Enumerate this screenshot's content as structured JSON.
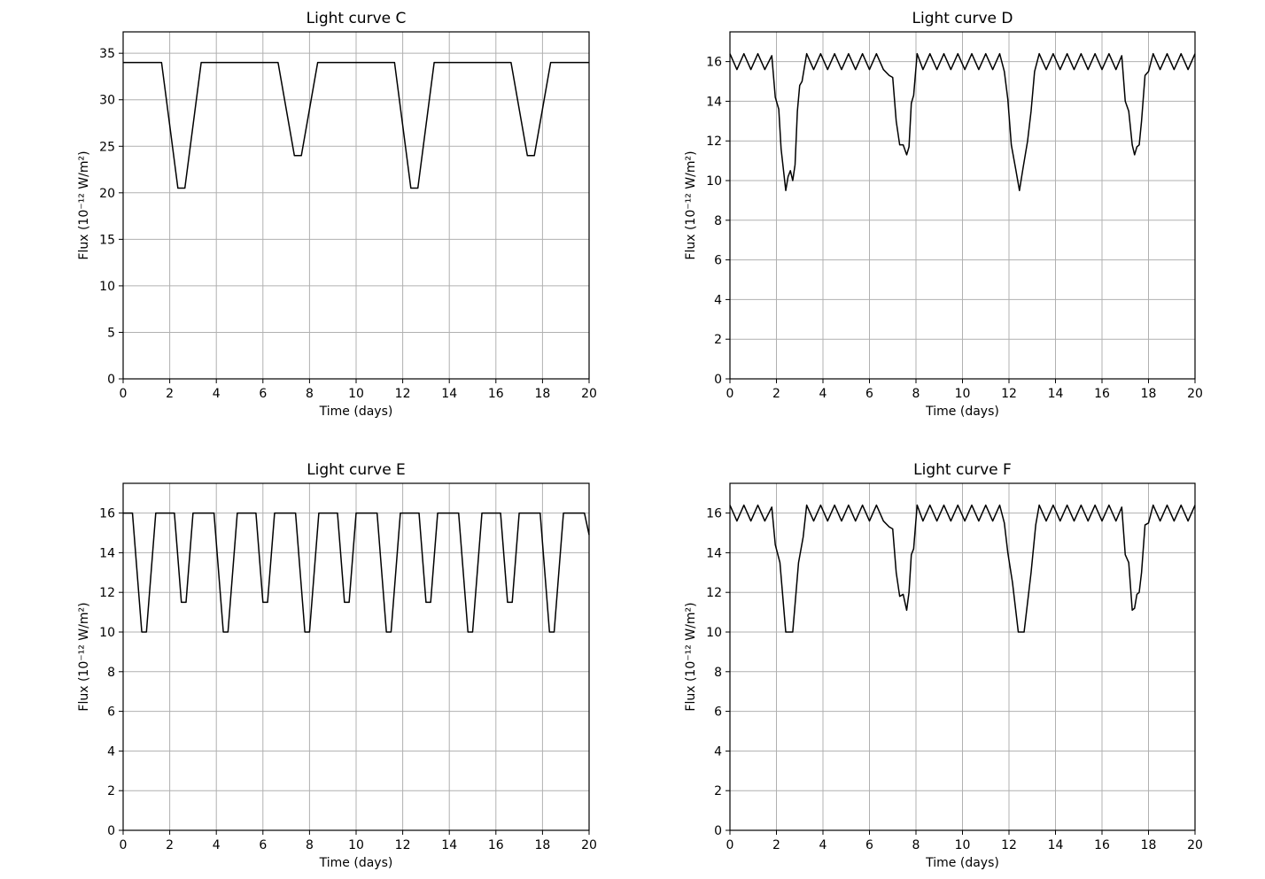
{
  "chart_data": [
    {
      "type": "line",
      "title": "Light curve C",
      "xlabel": "Time (days)",
      "ylabel": "Flux (10⁻¹² W/m²)",
      "xlim": [
        0,
        20
      ],
      "ylim": [
        0,
        37.3
      ],
      "xticks": [
        0,
        2,
        4,
        6,
        8,
        10,
        12,
        14,
        16,
        18,
        20
      ],
      "yticks": [
        0,
        5,
        10,
        15,
        20,
        25,
        30,
        35
      ],
      "grid": true,
      "series": [
        {
          "x": [
            0,
            1.65,
            2.35,
            2.65,
            3.35,
            6.65,
            7.35,
            7.65,
            8.35,
            11.65,
            12.35,
            12.65,
            13.35,
            16.65,
            17.35,
            17.65,
            18.35,
            20
          ],
          "y": [
            34,
            34,
            20.5,
            20.5,
            34,
            34,
            24,
            24,
            34,
            34,
            20.5,
            20.5,
            34,
            34,
            24,
            24,
            34,
            34
          ]
        }
      ]
    },
    {
      "type": "line",
      "title": "Light curve D",
      "xlabel": "Time (days)",
      "ylabel": "Flux (10⁻¹² W/m²)",
      "xlim": [
        0,
        20
      ],
      "ylim": [
        0,
        17.5
      ],
      "xticks": [
        0,
        2,
        4,
        6,
        8,
        10,
        12,
        14,
        16,
        18,
        20
      ],
      "yticks": [
        0,
        2,
        4,
        6,
        8,
        10,
        12,
        14,
        16
      ],
      "grid": true,
      "series": [
        {
          "x": [
            0,
            0.3,
            0.6,
            0.9,
            1.2,
            1.5,
            1.8,
            1.95,
            2.1,
            2.2,
            2.4,
            2.5,
            2.6,
            2.7,
            2.8,
            2.9,
            3.0,
            3.1,
            3.3,
            3.6,
            3.9,
            4.2,
            4.5,
            4.8,
            5.1,
            5.4,
            5.7,
            6.0,
            6.3,
            6.6,
            6.85,
            7.0,
            7.15,
            7.3,
            7.45,
            7.6,
            7.7,
            7.8,
            7.9,
            8.05,
            8.3,
            8.6,
            8.9,
            9.2,
            9.5,
            9.8,
            10.1,
            10.4,
            10.7,
            11.0,
            11.3,
            11.6,
            11.8,
            11.95,
            12.1,
            12.3,
            12.45,
            12.6,
            12.8,
            12.95,
            13.1,
            13.3,
            13.6,
            13.9,
            14.2,
            14.5,
            14.8,
            15.1,
            15.4,
            15.7,
            16.0,
            16.3,
            16.6,
            16.85,
            17.0,
            17.15,
            17.3,
            17.4,
            17.5,
            17.6,
            17.7,
            17.85,
            18.0,
            18.2,
            18.5,
            18.8,
            19.1,
            19.4,
            19.7,
            20.0
          ],
          "y": [
            16.4,
            15.6,
            16.4,
            15.6,
            16.4,
            15.6,
            16.3,
            14.2,
            13.6,
            11.6,
            9.5,
            10.2,
            10.5,
            10.0,
            10.8,
            13.5,
            14.8,
            15.0,
            16.4,
            15.6,
            16.4,
            15.6,
            16.4,
            15.6,
            16.4,
            15.6,
            16.4,
            15.6,
            16.4,
            15.6,
            15.3,
            15.2,
            13.0,
            11.8,
            11.8,
            11.3,
            11.7,
            13.9,
            14.3,
            16.4,
            15.6,
            16.4,
            15.6,
            16.4,
            15.6,
            16.4,
            15.6,
            16.4,
            15.6,
            16.4,
            15.6,
            16.4,
            15.5,
            14.1,
            11.8,
            10.5,
            9.5,
            10.6,
            12.0,
            13.5,
            15.5,
            16.4,
            15.6,
            16.4,
            15.6,
            16.4,
            15.6,
            16.4,
            15.6,
            16.4,
            15.6,
            16.4,
            15.6,
            16.3,
            14.0,
            13.5,
            11.8,
            11.3,
            11.7,
            11.8,
            13.0,
            15.3,
            15.5,
            16.4,
            15.6,
            16.4,
            15.6,
            16.4,
            15.6,
            16.4
          ]
        }
      ]
    },
    {
      "type": "line",
      "title": "Light curve E",
      "xlabel": "Time (days)",
      "ylabel": "Flux (10⁻¹² W/m²)",
      "xlim": [
        0,
        20
      ],
      "ylim": [
        0,
        17.5
      ],
      "xticks": [
        0,
        2,
        4,
        6,
        8,
        10,
        12,
        14,
        16,
        18,
        20
      ],
      "yticks": [
        0,
        2,
        4,
        6,
        8,
        10,
        12,
        14,
        16
      ],
      "grid": true,
      "series": [
        {
          "x": [
            0,
            0.4,
            0.8,
            1.0,
            1.4,
            2.2,
            2.5,
            2.7,
            3.0,
            3.9,
            4.3,
            4.5,
            4.9,
            5.7,
            6.0,
            6.2,
            6.5,
            7.4,
            7.8,
            8.0,
            8.4,
            9.2,
            9.5,
            9.7,
            10.0,
            10.9,
            11.3,
            11.5,
            11.9,
            12.7,
            13.0,
            13.2,
            13.5,
            14.4,
            14.8,
            15.0,
            15.4,
            16.2,
            16.5,
            16.7,
            17.0,
            17.9,
            18.3,
            18.5,
            18.9,
            19.8,
            20.0
          ],
          "y": [
            16,
            16,
            10,
            10,
            16,
            16,
            11.5,
            11.5,
            16,
            16,
            10,
            10,
            16,
            16,
            11.5,
            11.5,
            16,
            16,
            10,
            10,
            16,
            16,
            11.5,
            11.5,
            16,
            16,
            10,
            10,
            16,
            16,
            11.5,
            11.5,
            16,
            16,
            10,
            10,
            16,
            16,
            11.5,
            11.5,
            16,
            16,
            10,
            10,
            16,
            16,
            14.9
          ]
        }
      ]
    },
    {
      "type": "line",
      "title": "Light curve F",
      "xlabel": "Time (days)",
      "ylabel": "Flux (10⁻¹² W/m²)",
      "xlim": [
        0,
        20
      ],
      "ylim": [
        0,
        17.5
      ],
      "xticks": [
        0,
        2,
        4,
        6,
        8,
        10,
        12,
        14,
        16,
        18,
        20
      ],
      "yticks": [
        0,
        2,
        4,
        6,
        8,
        10,
        12,
        14,
        16
      ],
      "grid": true,
      "series": [
        {
          "x": [
            0,
            0.3,
            0.6,
            0.9,
            1.2,
            1.5,
            1.8,
            1.95,
            2.15,
            2.4,
            2.7,
            2.95,
            3.15,
            3.3,
            3.6,
            3.9,
            4.2,
            4.5,
            4.8,
            5.1,
            5.4,
            5.7,
            6.0,
            6.3,
            6.6,
            6.85,
            7.0,
            7.15,
            7.3,
            7.45,
            7.6,
            7.7,
            7.8,
            7.9,
            8.05,
            8.3,
            8.6,
            8.9,
            9.2,
            9.5,
            9.8,
            10.1,
            10.4,
            10.7,
            11.0,
            11.3,
            11.6,
            11.8,
            11.95,
            12.15,
            12.4,
            12.65,
            12.95,
            13.15,
            13.3,
            13.6,
            13.9,
            14.2,
            14.5,
            14.8,
            15.1,
            15.4,
            15.7,
            16.0,
            16.3,
            16.6,
            16.85,
            17.0,
            17.15,
            17.3,
            17.4,
            17.5,
            17.6,
            17.7,
            17.85,
            18.0,
            18.2,
            18.5,
            18.8,
            19.1,
            19.4,
            19.7,
            20.0
          ],
          "y": [
            16.4,
            15.6,
            16.4,
            15.6,
            16.4,
            15.6,
            16.3,
            14.4,
            13.5,
            10.0,
            10.0,
            13.5,
            14.8,
            16.4,
            15.6,
            16.4,
            15.6,
            16.4,
            15.6,
            16.4,
            15.6,
            16.4,
            15.6,
            16.4,
            15.6,
            15.3,
            15.2,
            13.0,
            11.8,
            11.9,
            11.1,
            12.0,
            13.9,
            14.2,
            16.4,
            15.6,
            16.4,
            15.6,
            16.4,
            15.6,
            16.4,
            15.6,
            16.4,
            15.6,
            16.4,
            15.6,
            16.4,
            15.5,
            14.0,
            12.5,
            10.0,
            10.0,
            13.0,
            15.4,
            16.4,
            15.6,
            16.4,
            15.6,
            16.4,
            15.6,
            16.4,
            15.6,
            16.4,
            15.6,
            16.4,
            15.6,
            16.3,
            13.9,
            13.5,
            11.1,
            11.2,
            11.9,
            12.0,
            13.0,
            15.4,
            15.5,
            16.4,
            15.6,
            16.4,
            15.6,
            16.4,
            15.6,
            16.4
          ]
        }
      ]
    }
  ]
}
